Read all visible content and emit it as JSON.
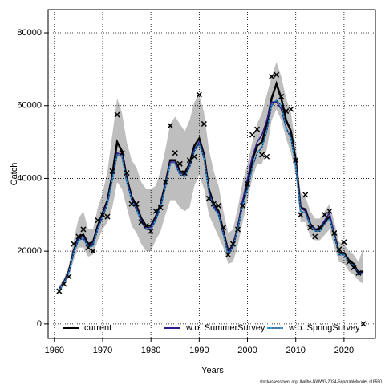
{
  "chart_data": {
    "type": "line",
    "x_label": "Years",
    "y_label": "Catch",
    "footer": "stockassessment.org, Iballhe-NWWG-2024-SeparableModel, r16550",
    "x": [
      1961,
      1962,
      1963,
      1964,
      1965,
      1966,
      1967,
      1968,
      1969,
      1970,
      1971,
      1972,
      1973,
      1974,
      1975,
      1976,
      1977,
      1978,
      1979,
      1980,
      1981,
      1982,
      1983,
      1984,
      1985,
      1986,
      1987,
      1988,
      1989,
      1990,
      1991,
      1992,
      1993,
      1994,
      1995,
      1996,
      1997,
      1998,
      1999,
      2000,
      2001,
      2002,
      2003,
      2004,
      2005,
      2006,
      2007,
      2008,
      2009,
      2010,
      2011,
      2012,
      2013,
      2014,
      2015,
      2016,
      2017,
      2018,
      2019,
      2020,
      2021,
      2022,
      2023,
      2024
    ],
    "xlim": [
      1958.7,
      2026.5
    ],
    "xticks": [
      1960,
      1970,
      1980,
      1990,
      2000,
      2010,
      2020
    ],
    "ylim": [
      -4000,
      86400
    ],
    "yticks": [
      0,
      20000,
      40000,
      60000,
      80000
    ],
    "grid": true,
    "band": {
      "color": "#bebebe",
      "upper": [
        10500,
        12500,
        16000,
        23000,
        29000,
        31000,
        26000,
        26000,
        32000,
        36000,
        42000,
        52000,
        62000,
        58000,
        50000,
        45000,
        43000,
        39000,
        37000,
        37000,
        38000,
        42000,
        48000,
        55000,
        57000,
        55000,
        53000,
        56000,
        61000,
        63000,
        58000,
        48000,
        42000,
        38000,
        31000,
        25000,
        26000,
        32000,
        39000,
        44000,
        50000,
        55000,
        58000,
        63000,
        68000,
        72000,
        68000,
        62000,
        58000,
        49000,
        36000,
        35000,
        31000,
        29000,
        29000,
        31000,
        33000,
        28000,
        22500,
        22000,
        20000,
        19000,
        17000,
        21000
      ],
      "lower": [
        8500,
        10500,
        13000,
        17500,
        21000,
        21000,
        18500,
        19000,
        23000,
        26000,
        28000,
        32000,
        39000,
        37000,
        32000,
        27000,
        25000,
        22000,
        20000,
        20000,
        23000,
        25500,
        30000,
        34000,
        34000,
        32000,
        31000,
        32000,
        38000,
        41000,
        37000,
        30000,
        27000,
        24000,
        21000,
        16500,
        17000,
        21500,
        28000,
        34000,
        40000,
        44000,
        44000,
        48000,
        56000,
        59000,
        56000,
        51000,
        47000,
        41000,
        28000,
        28000,
        24000,
        23000,
        23000,
        24500,
        26000,
        21000,
        17000,
        16500,
        14500,
        13500,
        12000,
        11000
      ]
    },
    "observed": {
      "color": "#000000",
      "values": [
        9000,
        11000,
        13000,
        22000,
        24000,
        26000,
        21000,
        20000,
        28500,
        30000,
        29500,
        42000,
        57500,
        47000,
        41500,
        33000,
        33000,
        28000,
        27000,
        25500,
        31000,
        32000,
        39000,
        54500,
        47000,
        44000,
        41500,
        45000,
        46000,
        63000,
        55000,
        34500,
        33000,
        32500,
        26500,
        19000,
        22000,
        26000,
        32500,
        38500,
        52000,
        53500,
        46500,
        46000,
        68000,
        68500,
        62500,
        58500,
        59000,
        45000,
        30000,
        35500,
        26500,
        24000,
        26500,
        30000,
        31000,
        25000,
        20500,
        22500,
        17000,
        15500,
        14000,
        0
      ]
    },
    "series": [
      {
        "name": "current",
        "color": "#000000",
        "dashed": false,
        "values": [
          9500,
          11500,
          14500,
          20000,
          24000,
          24500,
          22000,
          22500,
          27000,
          30500,
          34000,
          41000,
          50000,
          47500,
          40000,
          35000,
          32500,
          29000,
          27000,
          27000,
          29500,
          33000,
          38500,
          45000,
          45000,
          42000,
          41500,
          44000,
          49000,
          51000,
          46500,
          37000,
          33000,
          31000,
          25500,
          20000,
          21500,
          26500,
          33500,
          38000,
          45000,
          49000,
          50000,
          55000,
          62000,
          66000,
          62000,
          56000,
          53000,
          45000,
          32000,
          31500,
          27500,
          26000,
          26000,
          28000,
          29500,
          24500,
          19500,
          19500,
          17500,
          16500,
          14000,
          14500
        ]
      },
      {
        "name": "w.o. SummerSurvey",
        "color": "#2e1a8c",
        "dashed": false,
        "values": [
          9500,
          11500,
          14500,
          20000,
          23500,
          24000,
          21500,
          22000,
          26500,
          30000,
          33500,
          40000,
          47000,
          46500,
          39500,
          34500,
          32000,
          28500,
          26500,
          26500,
          29000,
          32500,
          38000,
          44500,
          44500,
          41500,
          41000,
          43500,
          48000,
          50000,
          46000,
          36500,
          32500,
          30500,
          25000,
          19500,
          21500,
          26500,
          34000,
          40000,
          46000,
          50000,
          52000,
          56000,
          61000,
          61000,
          59000,
          54000,
          51000,
          44000,
          32000,
          31000,
          27500,
          26000,
          26500,
          28500,
          30500,
          24500,
          19000,
          19000,
          17000,
          16000,
          14000,
          14000
        ]
      },
      {
        "name": "w.o. SpringSurvey",
        "color": "#29a3d8",
        "dashed": true,
        "values": [
          9300,
          11300,
          14200,
          19500,
          23000,
          23500,
          21000,
          21500,
          26000,
          29500,
          33000,
          39500,
          46500,
          46000,
          39000,
          34000,
          31500,
          28000,
          26000,
          26000,
          28500,
          32000,
          37500,
          44000,
          44000,
          41000,
          40500,
          43000,
          47500,
          49500,
          45500,
          36000,
          32000,
          30000,
          24500,
          19000,
          21000,
          26000,
          32500,
          37000,
          43000,
          47000,
          48500,
          53000,
          60000,
          61500,
          60000,
          54000,
          51000,
          43500,
          31000,
          30500,
          27000,
          25500,
          25500,
          27500,
          29000,
          24000,
          19000,
          19000,
          17000,
          16000,
          13500,
          14000
        ]
      }
    ]
  }
}
